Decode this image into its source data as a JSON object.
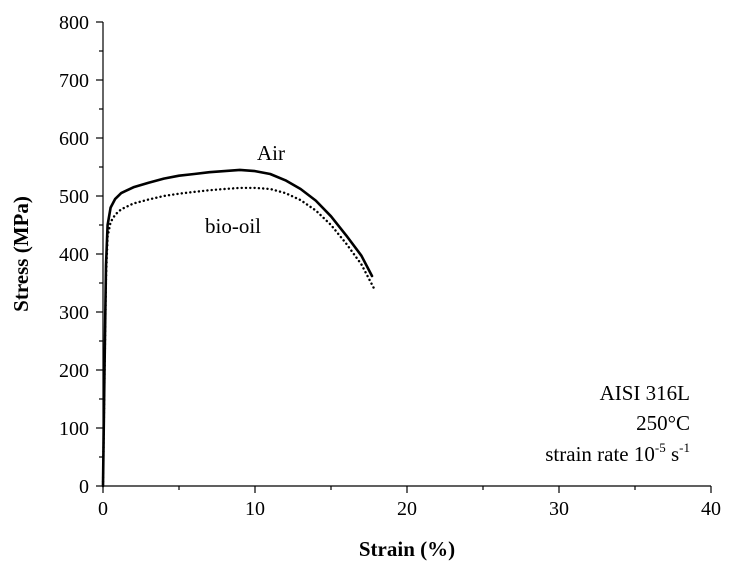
{
  "chart_data": {
    "type": "line",
    "title": "",
    "xlabel": "Strain (%)",
    "ylabel": "Stress (MPa)",
    "xlim": [
      0,
      40
    ],
    "ylim": [
      0,
      800
    ],
    "x_ticks": [
      0,
      10,
      20,
      30,
      40
    ],
    "y_ticks": [
      0,
      100,
      200,
      300,
      400,
      500,
      600,
      700,
      800
    ],
    "grid": false,
    "series": [
      {
        "name": "Air",
        "style": "solid",
        "color": "#000000",
        "x": [
          0,
          0.1,
          0.2,
          0.3,
          0.5,
          0.8,
          1.2,
          2,
          3,
          4,
          5,
          6,
          7,
          8,
          9,
          10,
          11,
          12,
          13,
          14,
          15,
          16,
          17,
          17.7
        ],
        "y": [
          0,
          200,
          380,
          450,
          480,
          495,
          505,
          515,
          523,
          530,
          535,
          538,
          541,
          543,
          545,
          543,
          538,
          527,
          512,
          492,
          465,
          432,
          397,
          362
        ]
      },
      {
        "name": "bio-oil",
        "style": "dotted",
        "color": "#000000",
        "x": [
          0,
          0.1,
          0.2,
          0.3,
          0.5,
          0.8,
          1.2,
          2,
          3,
          4,
          5,
          6,
          7,
          8,
          9,
          10,
          11,
          12,
          13,
          14,
          15,
          16,
          17,
          17.9
        ],
        "y": [
          0,
          190,
          360,
          430,
          455,
          468,
          477,
          487,
          494,
          500,
          504,
          507,
          510,
          512,
          514,
          514,
          512,
          505,
          493,
          475,
          450,
          418,
          382,
          337
        ]
      }
    ],
    "annotations": {
      "air": "Air",
      "bio_oil": "bio-oil",
      "material": "AISI 316L",
      "temperature": "250°C",
      "rate_prefix": "strain rate 10",
      "rate_exp1": "-5",
      "rate_unit": " s",
      "rate_exp2": "-1"
    }
  }
}
